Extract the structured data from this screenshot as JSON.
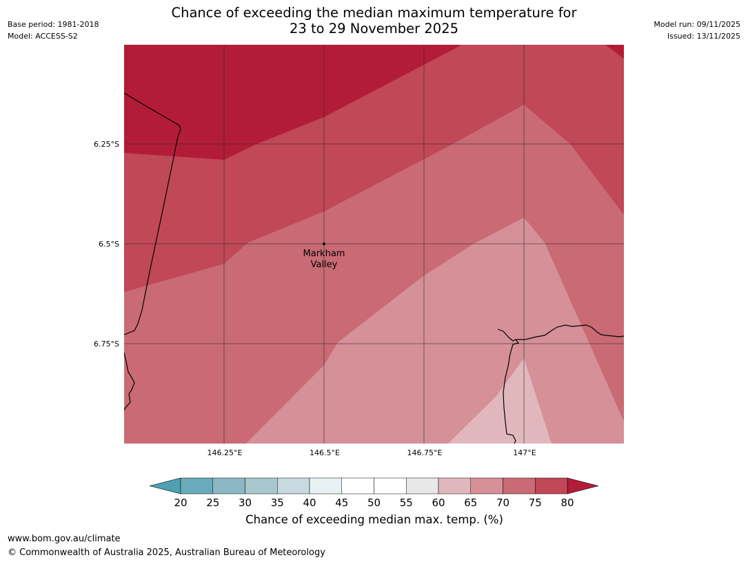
{
  "header": {
    "title_line1": "Chance of exceeding the median maximum temperature for",
    "title_line2": "23 to 29 November 2025",
    "base_period": "Base period: 1981-2018",
    "model": "Model: ACCESS-S2",
    "model_run": "Model run: 09/11/2025",
    "issued": "Issued: 13/11/2025"
  },
  "map": {
    "lat_labels": [
      "6.25°S",
      "6.5°S",
      "6.75°S"
    ],
    "lon_labels": [
      "146.25°E",
      "146.5°E",
      "146.75°E",
      "147°E"
    ],
    "place_marker": {
      "line1": "Markham",
      "line2": "Valley"
    },
    "extent": {
      "lon": [
        146.0,
        147.25
      ],
      "lat": [
        -6.0,
        -7.0
      ]
    }
  },
  "colorbar": {
    "ticks": [
      "20",
      "25",
      "30",
      "35",
      "40",
      "45",
      "50",
      "55",
      "60",
      "65",
      "70",
      "75",
      "80"
    ],
    "colors": {
      "below20": "#4ea1b2",
      "b20_25": "#6aabbb",
      "b25_30": "#8cb7c4",
      "b30_35": "#a8c7ce",
      "b35_40": "#c8dadf",
      "b40_45": "#e8f1f3",
      "b45_50": "#ffffff",
      "b50_55": "#ffffff",
      "b55_60": "#e8e8e8",
      "b60_65": "#e0b7bc",
      "b65_70": "#d59098",
      "b70_75": "#c96a74",
      "b75_80": "#c04857",
      "above80": "#b21c37"
    },
    "label": "Chance of exceeding median max. temp. (%)"
  },
  "footer": {
    "url": "www.bom.gov.au/climate",
    "copyright": "© Commonwealth of Australia 2025, Australian Bureau of Meteorology"
  }
}
